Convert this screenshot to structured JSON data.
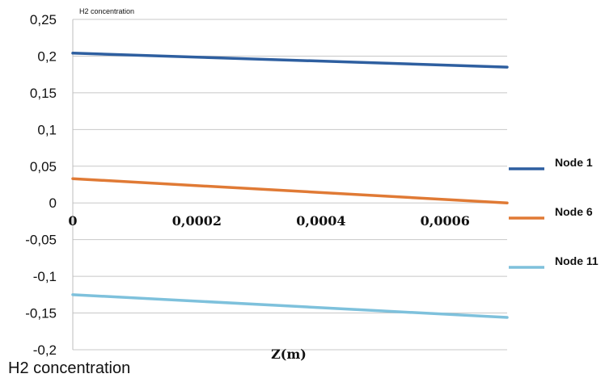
{
  "chart_data": {
    "type": "line",
    "title": "H2 concentration",
    "caption": "H2 concentration",
    "xlabel": "Z(m)",
    "ylabel": "",
    "xlim": [
      0,
      0.0007
    ],
    "ylim": [
      -0.2,
      0.25
    ],
    "yticks": [
      -0.2,
      -0.15,
      -0.1,
      -0.05,
      0,
      0.05,
      0.1,
      0.15,
      0.2,
      0.25
    ],
    "ytick_labels": [
      "-0,2",
      "-0,15",
      "-0,1",
      "-0,05",
      "0",
      "0,05",
      "0,1",
      "0,15",
      "0,2",
      "0,25"
    ],
    "xticks": [
      0,
      0.0002,
      0.0004,
      0.0006
    ],
    "xtick_labels": [
      "0",
      "0,0002",
      "0,0004",
      "0,0006"
    ],
    "grid": true,
    "legend_position": "right",
    "series": [
      {
        "name": "Node 1",
        "color": "#2e5fa0",
        "x": [
          0,
          0.0007
        ],
        "y": [
          0.204,
          0.185
        ]
      },
      {
        "name": "Node 6",
        "color": "#e07a35",
        "x": [
          0,
          0.0007
        ],
        "y": [
          0.033,
          0.0
        ]
      },
      {
        "name": "Node 11",
        "color": "#7ec1dc",
        "x": [
          0,
          0.0007
        ],
        "y": [
          -0.125,
          -0.156
        ]
      }
    ]
  }
}
